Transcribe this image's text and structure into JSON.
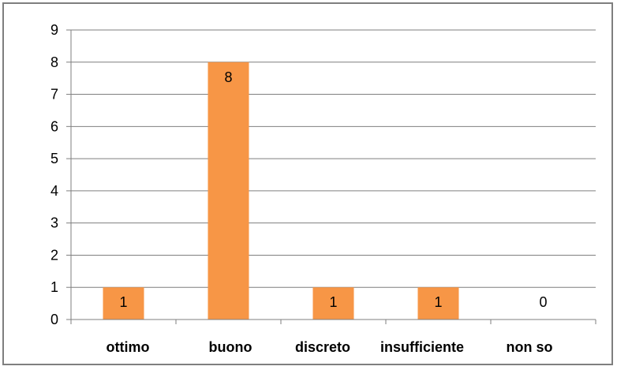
{
  "chart_data": {
    "type": "bar",
    "categories": [
      "ottimo",
      "buono",
      "discreto",
      "insufficiente",
      "non so"
    ],
    "values": [
      1,
      8,
      1,
      1,
      0
    ],
    "data_labels": [
      "1",
      "8",
      "1",
      "1",
      "0"
    ],
    "title": "",
    "xlabel": "",
    "ylabel": "",
    "ylim": [
      0,
      9
    ],
    "yticks": [
      "0",
      "1",
      "2",
      "3",
      "4",
      "5",
      "6",
      "7",
      "8",
      "9"
    ],
    "grid": true,
    "legend": "none",
    "colors": {
      "bar": "#F79646",
      "grid": "#7f7f7f",
      "frame": "#7f7f7f"
    }
  }
}
